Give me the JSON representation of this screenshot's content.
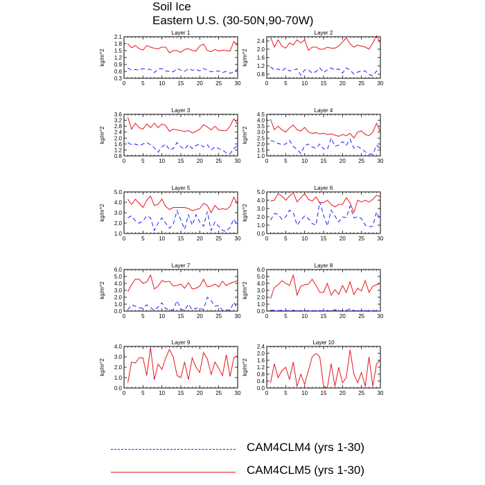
{
  "title": "Soil Ice",
  "subtitle": "Eastern U.S. (30-50N,90-70W)",
  "ylabel": "kg/m^2",
  "legend": [
    {
      "label": "CAM4CLM4 (yrs 1-30)",
      "color": "#1a1aff",
      "style": "dashed"
    },
    {
      "label": "CAM4CLM5 (yrs 1-30)",
      "color": "#e8141b",
      "style": "solid"
    }
  ],
  "chart_data": [
    {
      "type": "line",
      "title": "Layer 1",
      "ylabel": "kg/m^2",
      "xlim": [
        0,
        30
      ],
      "xticks": [
        0,
        5,
        10,
        15,
        20,
        25,
        30
      ],
      "ylim": [
        0.3,
        2.1
      ],
      "yticks": [
        0.3,
        0.6,
        0.9,
        1.2,
        1.5,
        1.8,
        2.1
      ],
      "ytick_labels": [
        "0.3",
        "0.6",
        "0.9",
        "1.2",
        "1.5",
        "1.8",
        "2.1"
      ],
      "x": [
        1,
        2,
        3,
        4,
        5,
        6,
        7,
        8,
        9,
        10,
        11,
        12,
        13,
        14,
        15,
        16,
        17,
        18,
        19,
        20,
        21,
        22,
        23,
        24,
        25,
        26,
        27,
        28,
        29,
        30
      ],
      "series": [
        {
          "values": [
            1.8,
            1.62,
            1.72,
            1.58,
            1.52,
            1.72,
            1.65,
            1.6,
            1.58,
            1.65,
            1.65,
            1.4,
            1.5,
            1.5,
            1.42,
            1.55,
            1.58,
            1.5,
            1.48,
            1.7,
            1.78,
            1.5,
            1.45,
            1.55,
            1.48,
            1.52,
            1.5,
            1.48,
            1.9,
            1.7
          ]
        },
        {
          "values": [
            0.75,
            0.65,
            0.68,
            0.66,
            0.72,
            0.7,
            0.68,
            0.55,
            0.7,
            0.72,
            0.62,
            0.6,
            0.58,
            0.72,
            0.65,
            0.6,
            0.72,
            0.65,
            0.68,
            0.62,
            0.72,
            0.65,
            0.58,
            0.6,
            0.62,
            0.55,
            0.6,
            0.52,
            0.58,
            0.7
          ]
        }
      ]
    },
    {
      "type": "line",
      "title": "Layer 2",
      "ylabel": "kg/m^2",
      "xlim": [
        0,
        30
      ],
      "xticks": [
        0,
        5,
        10,
        15,
        20,
        25,
        30
      ],
      "ylim": [
        0.6,
        2.6
      ],
      "yticks": [
        0.8,
        1.2,
        1.6,
        2.0,
        2.4
      ],
      "ytick_labels": [
        "0.8",
        "1.2",
        "1.6",
        "2.0",
        "2.4"
      ],
      "x": [
        1,
        2,
        3,
        4,
        5,
        6,
        7,
        8,
        9,
        10,
        11,
        12,
        13,
        14,
        15,
        16,
        17,
        18,
        19,
        20,
        21,
        22,
        23,
        24,
        25,
        26,
        27,
        28,
        29,
        30
      ],
      "series": [
        {
          "values": [
            2.6,
            2.1,
            2.45,
            2.15,
            2.05,
            2.3,
            2.2,
            2.45,
            2.3,
            2.45,
            1.95,
            2.1,
            2.1,
            2.0,
            2.0,
            2.1,
            2.05,
            2.05,
            2.15,
            2.35,
            2.55,
            2.25,
            2.1,
            2.2,
            2.15,
            2.1,
            2.0,
            2.3,
            2.65,
            2.3
          ]
        },
        {
          "values": [
            1.15,
            1.0,
            1.05,
            0.95,
            1.1,
            0.95,
            1.0,
            1.05,
            0.75,
            1.0,
            1.0,
            0.85,
            0.92,
            1.1,
            0.88,
            1.0,
            1.1,
            1.0,
            1.05,
            0.85,
            1.1,
            1.0,
            0.8,
            0.9,
            0.95,
            0.95,
            0.78,
            0.72,
            0.95,
            1.0
          ]
        }
      ]
    },
    {
      "type": "line",
      "title": "Layer 3",
      "ylabel": "kg/m^2",
      "xlim": [
        0,
        30
      ],
      "xticks": [
        0,
        5,
        10,
        15,
        20,
        25,
        30
      ],
      "ylim": [
        0.8,
        3.6
      ],
      "yticks": [
        0.8,
        1.2,
        1.6,
        2.0,
        2.4,
        2.8,
        3.2,
        3.6
      ],
      "ytick_labels": [
        "0.8",
        "1.2",
        "1.6",
        "2.0",
        "2.4",
        "2.8",
        "3.2",
        "3.6"
      ],
      "x": [
        1,
        2,
        3,
        4,
        5,
        6,
        7,
        8,
        9,
        10,
        11,
        12,
        13,
        14,
        15,
        16,
        17,
        18,
        19,
        20,
        21,
        22,
        23,
        24,
        25,
        26,
        27,
        28,
        29,
        30
      ],
      "series": [
        {
          "values": [
            3.4,
            2.6,
            3.0,
            2.7,
            2.6,
            2.95,
            2.7,
            3.0,
            2.7,
            2.95,
            2.85,
            2.45,
            2.6,
            2.55,
            2.5,
            2.45,
            2.5,
            2.35,
            2.45,
            2.6,
            2.9,
            2.75,
            2.55,
            2.8,
            2.55,
            2.5,
            2.5,
            2.8,
            3.3,
            2.9
          ]
        },
        {
          "values": [
            1.7,
            1.55,
            1.6,
            1.5,
            1.6,
            1.7,
            1.55,
            1.35,
            1.05,
            1.4,
            1.6,
            1.2,
            1.3,
            1.7,
            1.4,
            1.25,
            1.55,
            1.3,
            1.5,
            1.6,
            1.4,
            1.55,
            1.2,
            1.4,
            1.3,
            1.2,
            1.0,
            0.95,
            1.3,
            1.5
          ]
        }
      ]
    },
    {
      "type": "line",
      "title": "Layer 4",
      "ylabel": "kg/m^2",
      "xlim": [
        0,
        30
      ],
      "xticks": [
        0,
        5,
        10,
        15,
        20,
        25,
        30
      ],
      "ylim": [
        1.0,
        4.5
      ],
      "yticks": [
        1.0,
        1.5,
        2.0,
        2.5,
        3.0,
        3.5,
        4.0,
        4.5
      ],
      "ytick_labels": [
        "1.0",
        "1.5",
        "2.0",
        "2.5",
        "3.0",
        "3.5",
        "4.0",
        "4.5"
      ],
      "x": [
        1,
        2,
        3,
        4,
        5,
        6,
        7,
        8,
        9,
        10,
        11,
        12,
        13,
        14,
        15,
        16,
        17,
        18,
        19,
        20,
        21,
        22,
        23,
        24,
        25,
        26,
        27,
        28,
        29,
        30
      ],
      "series": [
        {
          "values": [
            4.1,
            3.2,
            3.5,
            3.2,
            3.0,
            3.35,
            3.6,
            3.2,
            3.1,
            3.4,
            3.0,
            2.9,
            2.95,
            2.85,
            2.9,
            2.8,
            2.85,
            2.75,
            2.65,
            2.8,
            2.7,
            2.9,
            2.5,
            3.0,
            3.1,
            2.8,
            2.7,
            3.0,
            3.75,
            3.0
          ]
        },
        {
          "values": [
            2.3,
            2.2,
            2.05,
            1.95,
            2.0,
            2.3,
            1.8,
            1.55,
            1.2,
            1.85,
            2.0,
            1.75,
            1.65,
            2.0,
            1.6,
            1.55,
            2.5,
            1.8,
            1.9,
            2.2,
            1.9,
            2.4,
            1.65,
            1.8,
            1.6,
            1.35,
            1.15,
            1.15,
            1.9,
            1.6
          ]
        }
      ]
    },
    {
      "type": "line",
      "title": "Layer 5",
      "ylabel": "kg/m^2",
      "xlim": [
        0,
        30
      ],
      "xticks": [
        0,
        5,
        10,
        15,
        20,
        25,
        30
      ],
      "ylim": [
        1.0,
        5.0
      ],
      "yticks": [
        1.0,
        2.0,
        3.0,
        4.0,
        5.0
      ],
      "ytick_labels": [
        "1.0",
        "2.0",
        "3.0",
        "4.0",
        "5.0"
      ],
      "x": [
        1,
        2,
        3,
        4,
        5,
        6,
        7,
        8,
        9,
        10,
        11,
        12,
        13,
        14,
        15,
        16,
        17,
        18,
        19,
        20,
        21,
        22,
        23,
        24,
        25,
        26,
        27,
        28,
        29,
        30
      ],
      "series": [
        {
          "values": [
            4.3,
            3.8,
            4.3,
            3.9,
            3.5,
            4.2,
            4.6,
            3.7,
            3.8,
            4.3,
            3.6,
            3.3,
            3.5,
            3.5,
            3.5,
            3.5,
            3.4,
            3.2,
            3.3,
            3.4,
            3.9,
            3.7,
            3.0,
            3.7,
            3.3,
            3.4,
            3.3,
            3.6,
            4.5,
            3.8
          ]
        },
        {
          "values": [
            2.5,
            2.7,
            2.2,
            2.0,
            2.2,
            2.7,
            2.5,
            1.3,
            2.0,
            2.5,
            2.0,
            1.5,
            1.9,
            3.2,
            2.3,
            1.4,
            2.8,
            1.8,
            2.8,
            2.1,
            1.7,
            3.1,
            1.3,
            2.1,
            1.7,
            1.3,
            1.2,
            1.6,
            2.4,
            1.7
          ]
        }
      ]
    },
    {
      "type": "line",
      "title": "Layer 6",
      "ylabel": "kg/m^2",
      "xlim": [
        0,
        30
      ],
      "xticks": [
        0,
        5,
        10,
        15,
        20,
        25,
        30
      ],
      "ylim": [
        0.0,
        5.0
      ],
      "yticks": [
        0.0,
        1.0,
        2.0,
        3.0,
        4.0,
        5.0
      ],
      "ytick_labels": [
        "0.0",
        "1.0",
        "2.0",
        "3.0",
        "4.0",
        "5.0"
      ],
      "x": [
        1,
        2,
        3,
        4,
        5,
        6,
        7,
        8,
        9,
        10,
        11,
        12,
        13,
        14,
        15,
        16,
        17,
        18,
        19,
        20,
        21,
        22,
        23,
        24,
        25,
        26,
        27,
        28,
        29,
        30
      ],
      "series": [
        {
          "values": [
            3.9,
            4.0,
            4.8,
            4.5,
            4.0,
            4.5,
            4.9,
            3.8,
            4.3,
            4.8,
            4.1,
            3.9,
            4.4,
            3.7,
            3.7,
            4.0,
            3.5,
            3.2,
            3.5,
            3.5,
            4.3,
            3.7,
            2.5,
            4.0,
            3.8,
            4.0,
            3.8,
            4.1,
            4.6,
            4.4
          ]
        },
        {
          "values": [
            1.6,
            2.4,
            2.3,
            1.7,
            2.0,
            2.8,
            2.5,
            1.0,
            1.6,
            2.1,
            1.8,
            1.2,
            1.0,
            3.8,
            2.2,
            0.9,
            2.8,
            2.1,
            1.4,
            2.0,
            1.9,
            3.3,
            1.9,
            2.0,
            1.8,
            1.0,
            0.8,
            0.9,
            2.6,
            1.5
          ]
        }
      ]
    },
    {
      "type": "line",
      "title": "Layer 7",
      "ylabel": "kg/m^2",
      "xlim": [
        0,
        30
      ],
      "xticks": [
        0,
        5,
        10,
        15,
        20,
        25,
        30
      ],
      "ylim": [
        0.0,
        6.0
      ],
      "yticks": [
        0.0,
        1.0,
        2.0,
        3.0,
        4.0,
        5.0,
        6.0
      ],
      "ytick_labels": [
        "0.0",
        "1.0",
        "2.0",
        "3.0",
        "4.0",
        "5.0",
        "6.0"
      ],
      "x": [
        1,
        2,
        3,
        4,
        5,
        6,
        7,
        8,
        9,
        10,
        11,
        12,
        13,
        14,
        15,
        16,
        17,
        18,
        19,
        20,
        21,
        22,
        23,
        24,
        25,
        26,
        27,
        28,
        29,
        30
      ],
      "series": [
        {
          "values": [
            2.8,
            3.8,
            4.6,
            4.6,
            4.0,
            4.2,
            5.2,
            3.2,
            3.6,
            4.4,
            4.2,
            4.3,
            3.6,
            3.7,
            3.9,
            3.3,
            4.1,
            3.2,
            3.3,
            3.6,
            4.6,
            3.5,
            3.6,
            3.9,
            3.5,
            4.3,
            3.7,
            4.0,
            4.2,
            4.4
          ]
        },
        {
          "values": [
            0.2,
            0.9,
            0.7,
            0.5,
            0.4,
            0.9,
            0.5,
            0.1,
            0.6,
            1.2,
            0.4,
            0.1,
            0.2,
            1.5,
            0.3,
            0.1,
            1.0,
            0.2,
            0.4,
            0.4,
            0.2,
            2.0,
            1.5,
            0.7,
            0.8,
            0.1,
            0.2,
            0.1,
            1.3,
            0.2
          ]
        }
      ]
    },
    {
      "type": "line",
      "title": "Layer 8",
      "ylabel": "kg/m^2",
      "xlim": [
        0,
        30
      ],
      "xticks": [
        0,
        5,
        10,
        15,
        20,
        25,
        30
      ],
      "ylim": [
        0.0,
        6.0
      ],
      "yticks": [
        0.0,
        1.0,
        2.0,
        3.0,
        4.0,
        5.0,
        6.0
      ],
      "ytick_labels": [
        "0.0",
        "1.0",
        "2.0",
        "3.0",
        "4.0",
        "5.0",
        "6.0"
      ],
      "x": [
        1,
        2,
        3,
        4,
        5,
        6,
        7,
        8,
        9,
        10,
        11,
        12,
        13,
        14,
        15,
        16,
        17,
        18,
        19,
        20,
        21,
        22,
        23,
        24,
        25,
        26,
        27,
        28,
        29,
        30
      ],
      "series": [
        {
          "values": [
            1.8,
            3.4,
            3.8,
            4.4,
            4.0,
            3.7,
            5.2,
            2.3,
            3.6,
            3.8,
            3.9,
            4.6,
            3.7,
            2.7,
            2.7,
            4.0,
            2.3,
            3.1,
            2.4,
            3.7,
            2.7,
            4.2,
            2.4,
            3.3,
            2.9,
            4.4,
            2.7,
            3.6,
            3.8,
            4.0
          ]
        },
        {
          "values": [
            0.1,
            0.1,
            0.05,
            0.1,
            0.05,
            0.05,
            0.1,
            0.05,
            0.05,
            0.05,
            0.05,
            0.05,
            0.05,
            0.05,
            0.05,
            0.05,
            0.05,
            0.2,
            0.05,
            0.05,
            0.05,
            0.35,
            0.05,
            0.05,
            0.05,
            0.05,
            0.05,
            0.05,
            0.05,
            0.15
          ]
        }
      ]
    },
    {
      "type": "line",
      "title": "Layer 9",
      "ylabel": "kg/m^2",
      "xlim": [
        0,
        30
      ],
      "xticks": [
        0,
        5,
        10,
        15,
        20,
        25,
        30
      ],
      "ylim": [
        0.0,
        4.0
      ],
      "yticks": [
        0.0,
        1.0,
        2.0,
        3.0,
        4.0
      ],
      "ytick_labels": [
        "0.0",
        "1.0",
        "2.0",
        "3.0",
        "4.0"
      ],
      "x": [
        1,
        2,
        3,
        4,
        5,
        6,
        7,
        8,
        9,
        10,
        11,
        12,
        13,
        14,
        15,
        16,
        17,
        18,
        19,
        20,
        21,
        22,
        23,
        24,
        25,
        26,
        27,
        28,
        29,
        30
      ],
      "series": [
        {
          "values": [
            0.5,
            2.5,
            2.4,
            2.9,
            2.9,
            1.2,
            3.9,
            0.8,
            2.3,
            1.8,
            2.9,
            3.7,
            3.0,
            1.2,
            1.0,
            2.5,
            0.8,
            2.9,
            2.0,
            1.5,
            3.4,
            2.8,
            1.3,
            2.5,
            1.9,
            1.2,
            3.2,
            1.1,
            2.9,
            3.1
          ]
        }
      ]
    },
    {
      "type": "line",
      "title": "Layer 10",
      "ylabel": "kg/m^2",
      "xlim": [
        0,
        30
      ],
      "xticks": [
        0,
        5,
        10,
        15,
        20,
        25,
        30
      ],
      "ylim": [
        0.0,
        2.4
      ],
      "yticks": [
        0.0,
        0.4,
        0.8,
        1.2,
        1.6,
        2.0,
        2.4
      ],
      "ytick_labels": [
        "0.0",
        "0.4",
        "0.8",
        "1.2",
        "1.6",
        "2.0",
        "2.4"
      ],
      "x": [
        1,
        2,
        3,
        4,
        5,
        6,
        7,
        8,
        9,
        10,
        11,
        12,
        13,
        14,
        15,
        16,
        17,
        18,
        19,
        20,
        21,
        22,
        23,
        24,
        25,
        26,
        27,
        28,
        29,
        30
      ],
      "series": [
        {
          "values": [
            0.3,
            1.4,
            0.6,
            1.0,
            1.2,
            0.5,
            1.5,
            0.1,
            0.8,
            0.2,
            1.0,
            1.8,
            2.0,
            1.8,
            0.1,
            0.0,
            1.4,
            0.1,
            1.2,
            0.3,
            0.6,
            2.2,
            0.8,
            0.3,
            0.9,
            0.1,
            1.8,
            0.1,
            1.4,
            1.6
          ]
        }
      ]
    }
  ]
}
